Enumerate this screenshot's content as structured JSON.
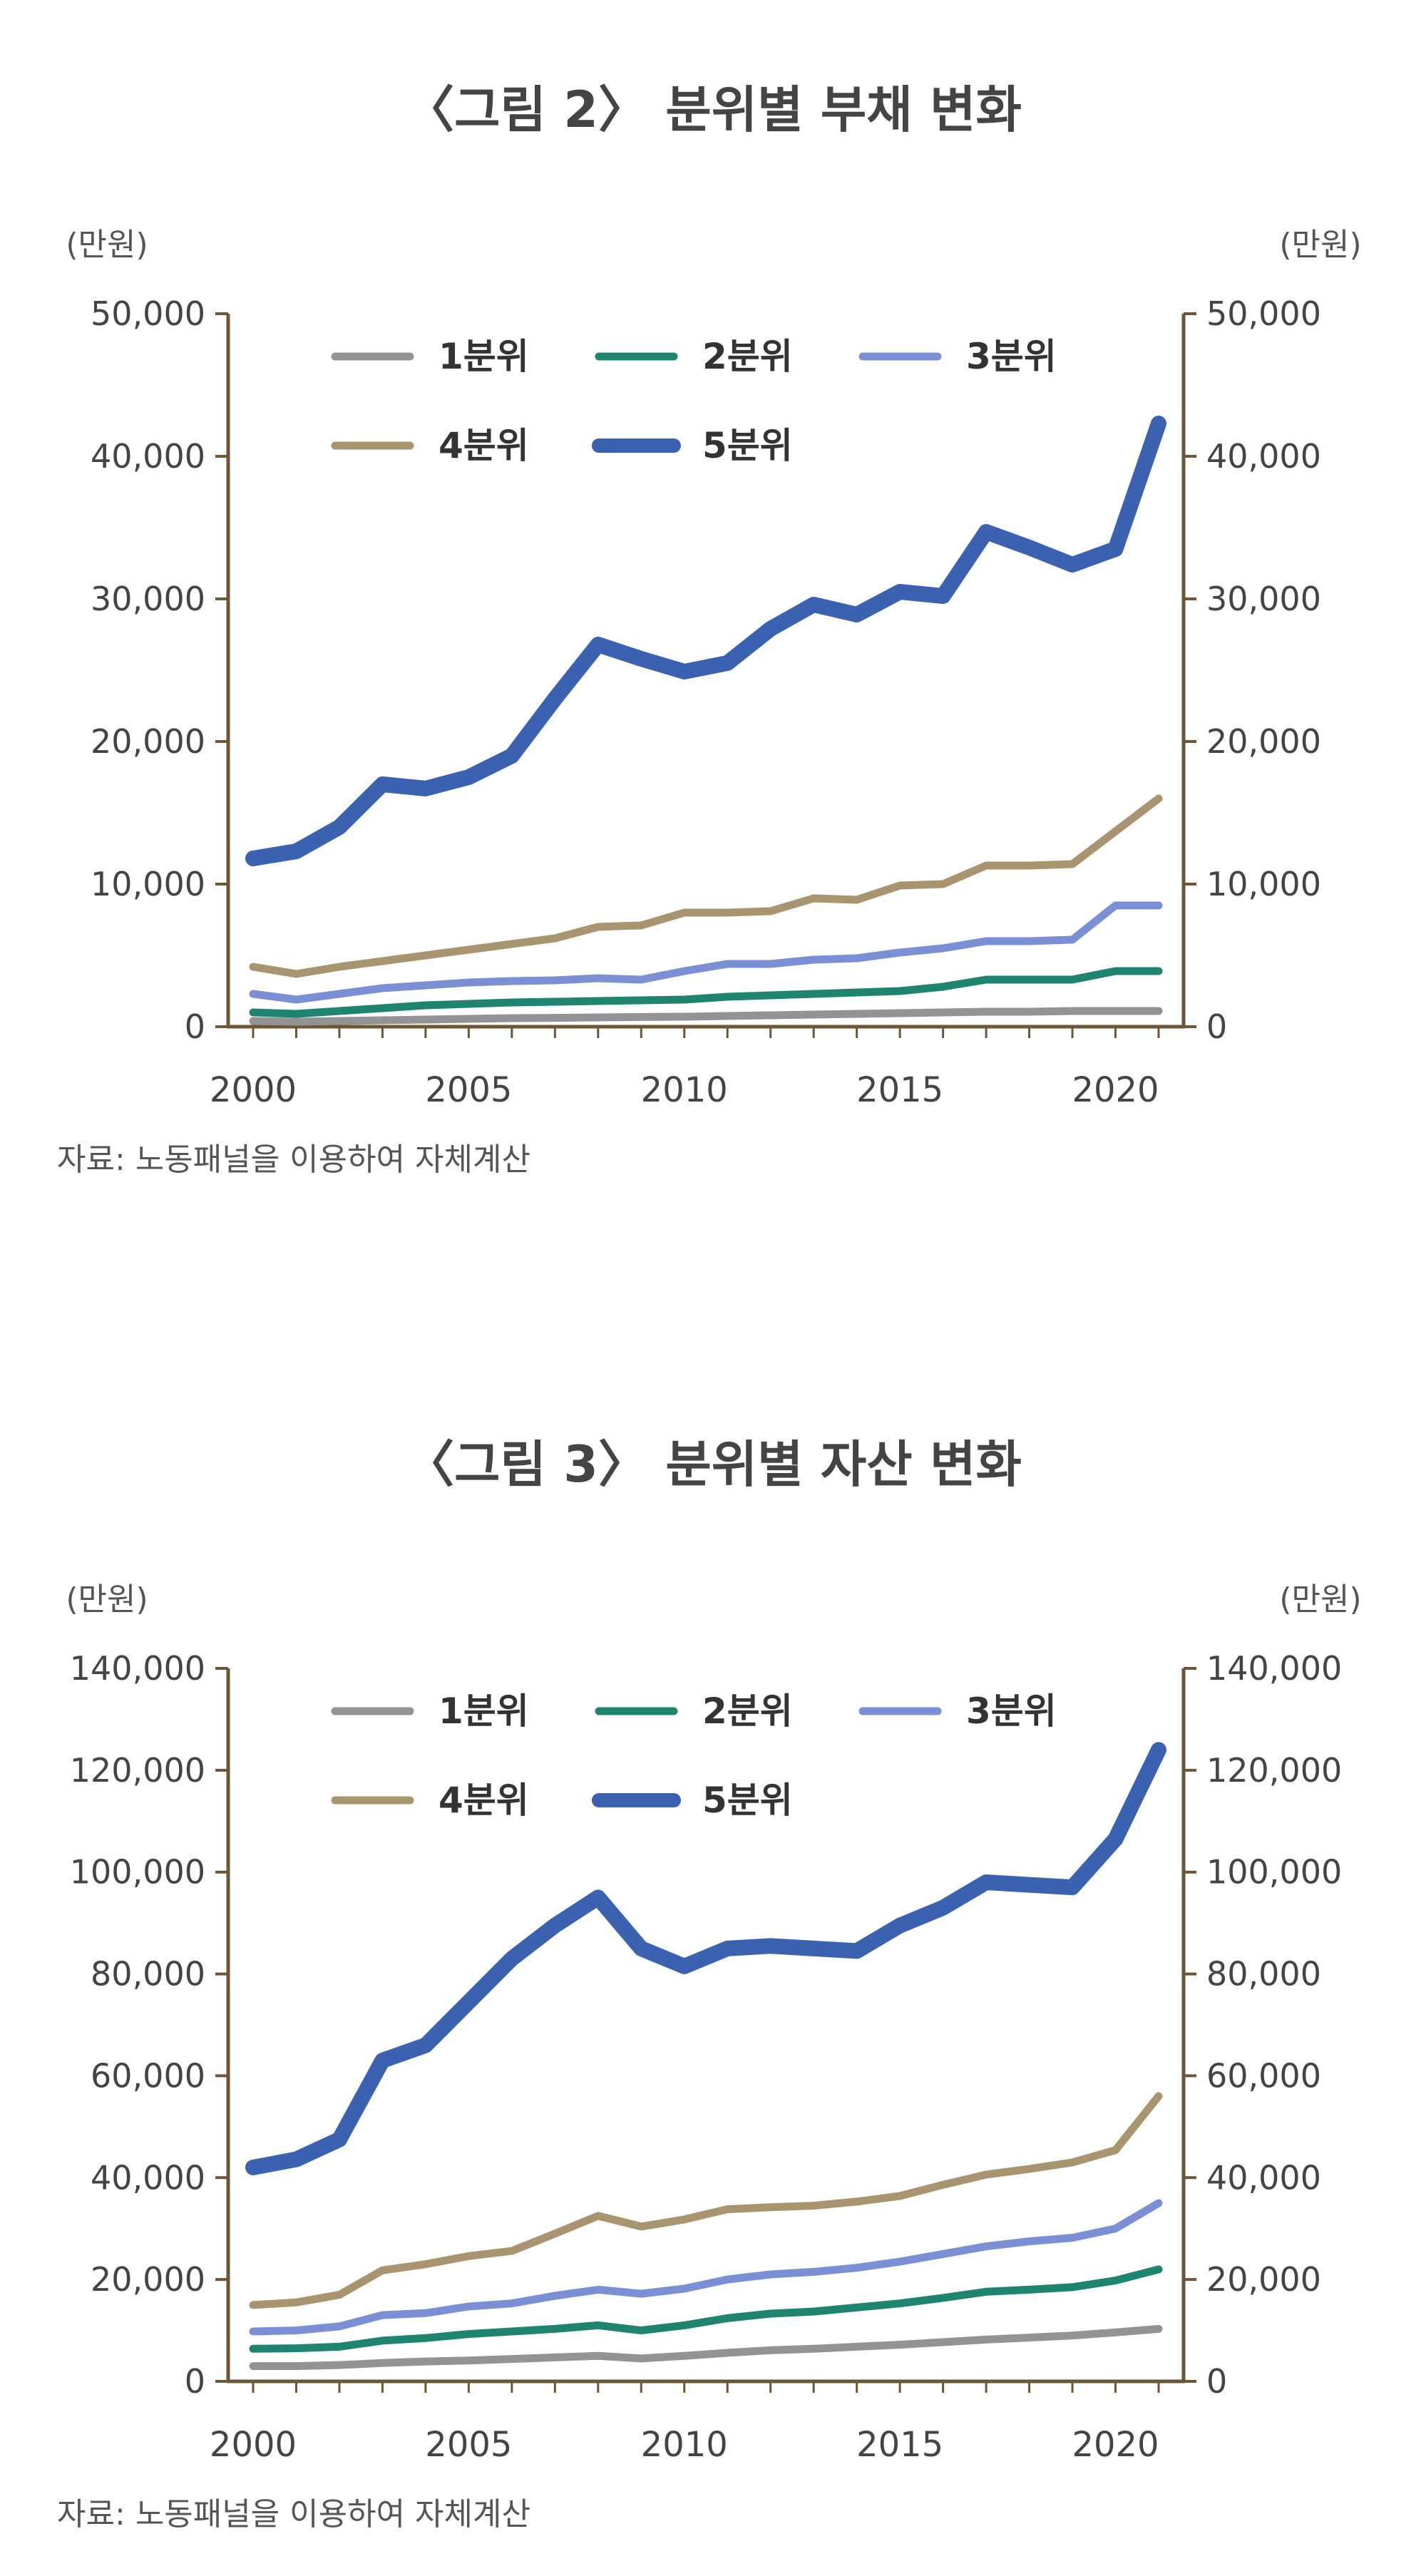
{
  "figures": [
    {
      "title": "〈그림 2〉 분위별 부채 변화",
      "source": "자료: 노동패널을 이용하여 자체계산",
      "unit_left": "(만원)",
      "unit_right": "(만원)"
    },
    {
      "title": "〈그림 3〉 분위별 자산 변화",
      "source": "자료: 노동패널을 이용하여 자체계산",
      "unit_left": "(만원)",
      "unit_right": "(만원)"
    }
  ],
  "chart_data": [
    {
      "type": "line",
      "title": "〈그림 2〉 분위별 부채 변화",
      "ylabel": "(만원)",
      "y2label": "(만원)",
      "xlabel": "",
      "xlim": [
        2000,
        2021
      ],
      "ylim": [
        0,
        50000
      ],
      "x_ticks": [
        2000,
        2005,
        2010,
        2015,
        2020
      ],
      "y_ticks": [
        0,
        10000,
        20000,
        30000,
        40000,
        50000
      ],
      "y_tick_labels": [
        "0",
        "10,000",
        "20,000",
        "30,000",
        "40,000",
        "50,000"
      ],
      "legend_position": "top",
      "x": [
        2000,
        2001,
        2002,
        2003,
        2004,
        2005,
        2006,
        2007,
        2008,
        2009,
        2010,
        2011,
        2012,
        2013,
        2014,
        2015,
        2016,
        2017,
        2018,
        2019,
        2020,
        2021
      ],
      "series": [
        {
          "name": "1분위",
          "color": "#939393",
          "values": [
            400,
            350,
            400,
            450,
            500,
            550,
            600,
            620,
            650,
            680,
            700,
            750,
            800,
            850,
            900,
            950,
            1000,
            1050,
            1050,
            1100,
            1100,
            1100
          ]
        },
        {
          "name": "2분위",
          "color": "#1e8470",
          "values": [
            1000,
            900,
            1100,
            1300,
            1500,
            1600,
            1700,
            1750,
            1800,
            1850,
            1900,
            2100,
            2200,
            2300,
            2400,
            2500,
            2800,
            3300,
            3300,
            3300,
            3900,
            3900
          ]
        },
        {
          "name": "3분위",
          "color": "#7b8fd4",
          "values": [
            2300,
            1900,
            2300,
            2700,
            2900,
            3100,
            3200,
            3250,
            3400,
            3300,
            3900,
            4400,
            4400,
            4700,
            4800,
            5200,
            5500,
            6000,
            6000,
            6100,
            8500,
            8500
          ]
        },
        {
          "name": "4분위",
          "color": "#a8956f",
          "values": [
            4200,
            3700,
            4200,
            4600,
            5000,
            5400,
            5800,
            6200,
            7000,
            7100,
            8000,
            8000,
            8100,
            9000,
            8900,
            9900,
            10000,
            11300,
            11300,
            11400,
            13700,
            16000
          ]
        },
        {
          "name": "5분위",
          "color": "#3b62b1",
          "values": [
            11800,
            12300,
            14000,
            17000,
            16700,
            17500,
            19000,
            23000,
            26800,
            25800,
            24900,
            25500,
            27900,
            29600,
            28900,
            30500,
            30200,
            34700,
            33600,
            32400,
            33500,
            42300
          ]
        }
      ]
    },
    {
      "type": "line",
      "title": "〈그림 3〉 분위별 자산 변화",
      "ylabel": "(만원)",
      "y2label": "(만원)",
      "xlabel": "",
      "xlim": [
        2000,
        2021
      ],
      "ylim": [
        0,
        140000
      ],
      "x_ticks": [
        2000,
        2005,
        2010,
        2015,
        2020
      ],
      "y_ticks": [
        0,
        20000,
        40000,
        60000,
        80000,
        100000,
        120000,
        140000
      ],
      "y_tick_labels": [
        "0",
        "20,000",
        "40,000",
        "60,000",
        "80,000",
        "100,000",
        "120,000",
        "140,000"
      ],
      "legend_position": "top",
      "x": [
        2000,
        2001,
        2002,
        2003,
        2004,
        2005,
        2006,
        2007,
        2008,
        2009,
        2010,
        2011,
        2012,
        2013,
        2014,
        2015,
        2016,
        2017,
        2018,
        2019,
        2020,
        2021
      ],
      "series": [
        {
          "name": "1분위",
          "color": "#939393",
          "values": [
            3000,
            3000,
            3200,
            3600,
            3900,
            4100,
            4400,
            4700,
            5000,
            4500,
            5000,
            5600,
            6100,
            6400,
            6800,
            7200,
            7700,
            8200,
            8600,
            9000,
            9600,
            10300
          ]
        },
        {
          "name": "2분위",
          "color": "#1e8470",
          "values": [
            6400,
            6500,
            6800,
            8000,
            8500,
            9300,
            9800,
            10300,
            11000,
            10000,
            11000,
            12400,
            13300,
            13700,
            14500,
            15300,
            16400,
            17600,
            18000,
            18500,
            19800,
            22000
          ]
        },
        {
          "name": "3분위",
          "color": "#7b8fd4",
          "values": [
            9800,
            10000,
            10800,
            13000,
            13400,
            14700,
            15300,
            16800,
            18000,
            17200,
            18200,
            20000,
            21000,
            21500,
            22300,
            23500,
            25000,
            26500,
            27500,
            28200,
            30000,
            35000
          ]
        },
        {
          "name": "4분위",
          "color": "#a8956f",
          "values": [
            15000,
            15500,
            17000,
            21800,
            23000,
            24600,
            25600,
            29000,
            32500,
            30400,
            31800,
            33800,
            34200,
            34500,
            35300,
            36400,
            38600,
            40600,
            41700,
            43000,
            45400,
            56000
          ]
        },
        {
          "name": "5분위",
          "color": "#3b62b1",
          "values": [
            42000,
            43600,
            47500,
            63000,
            66000,
            74500,
            83000,
            89500,
            95000,
            85000,
            81500,
            85000,
            85500,
            85000,
            84500,
            89500,
            93000,
            98000,
            97500,
            97000,
            106500,
            124000
          ]
        }
      ]
    }
  ]
}
